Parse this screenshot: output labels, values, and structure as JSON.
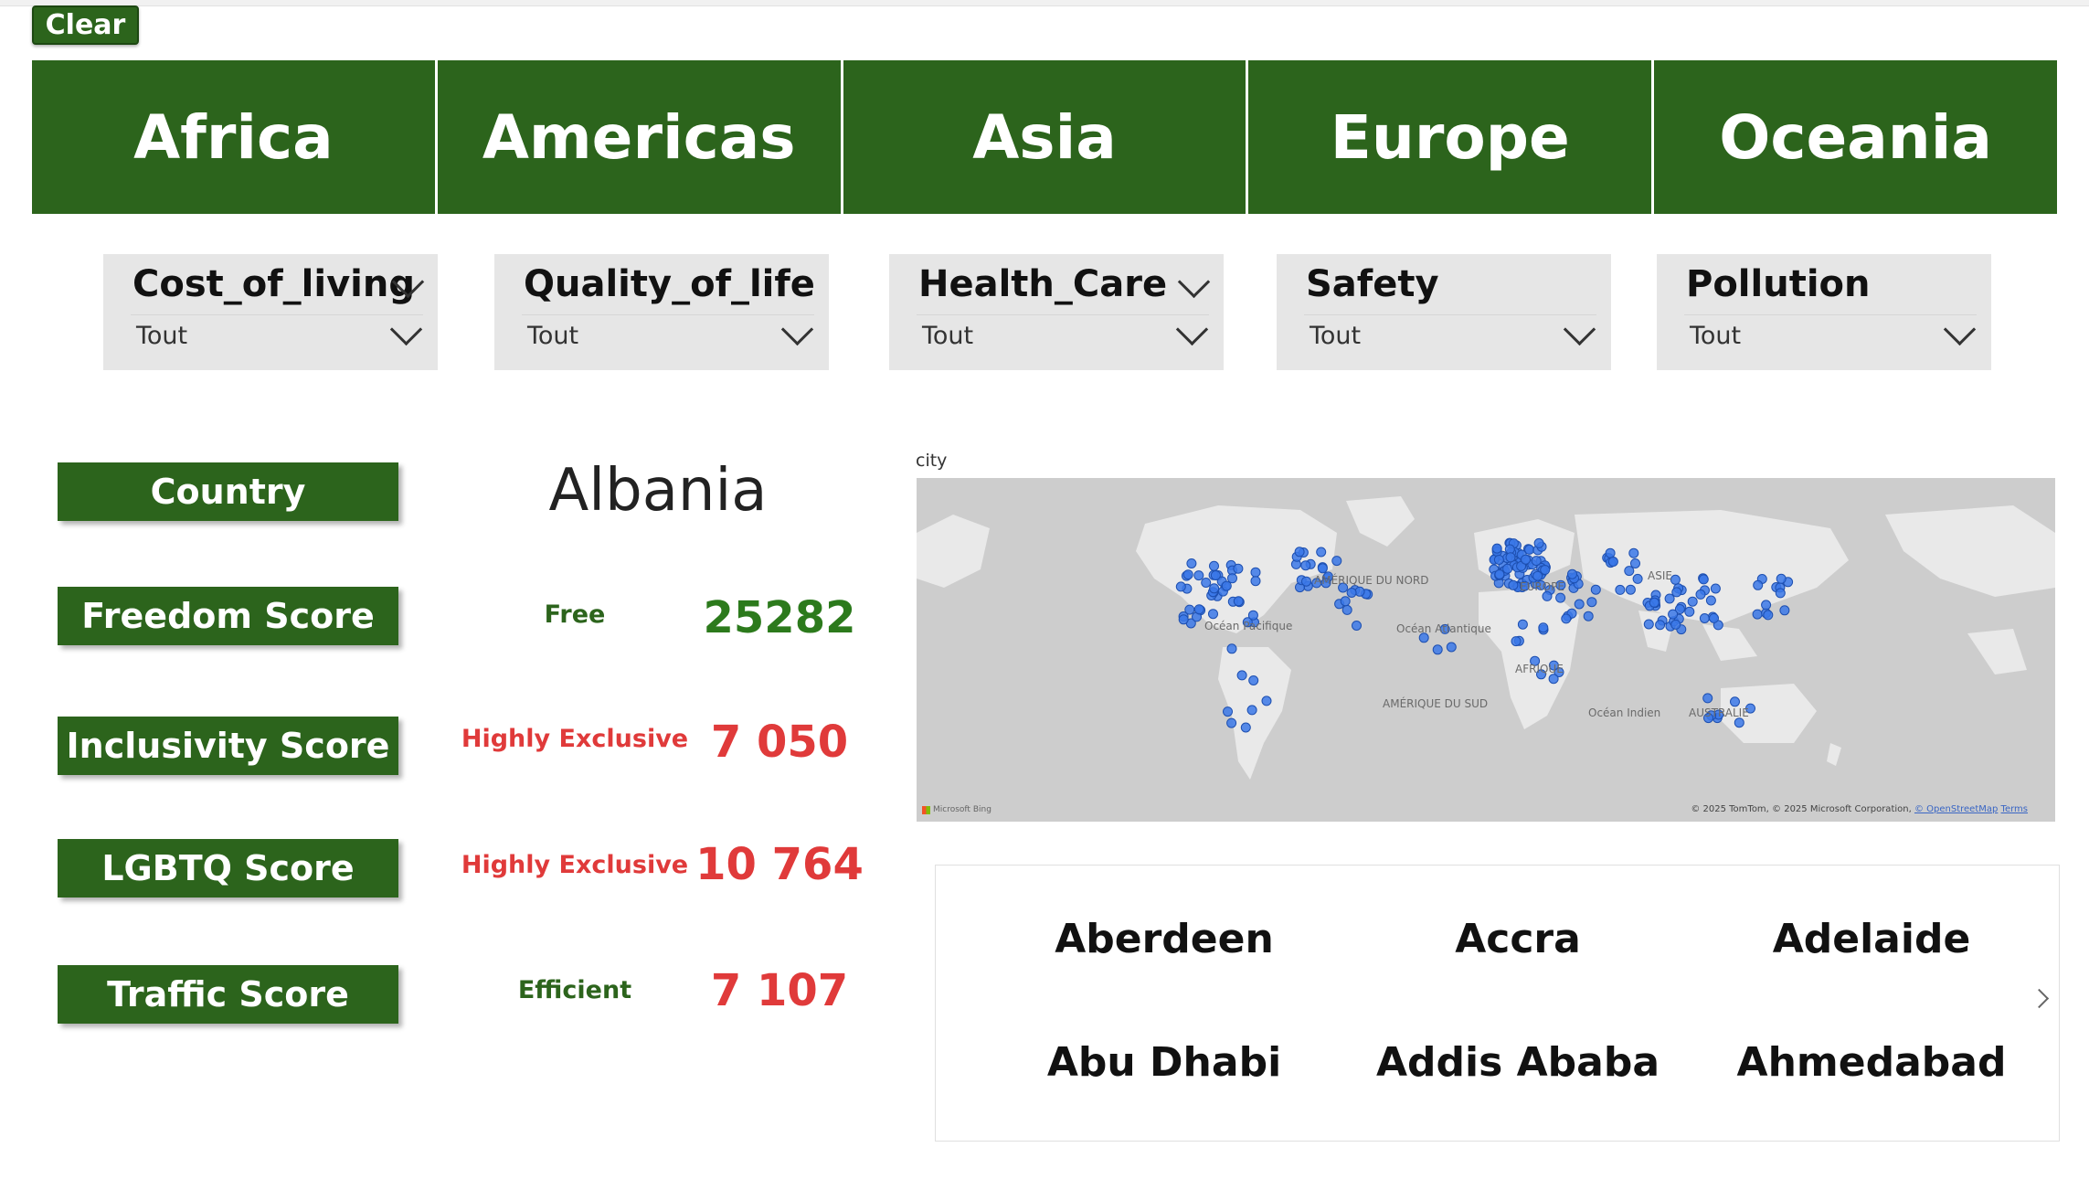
{
  "toolbar": {
    "clear_label": "Clear"
  },
  "regions": [
    "Africa",
    "Americas",
    "Asia",
    "Europe",
    "Oceania"
  ],
  "slicers": [
    {
      "title": "Cost_of_living",
      "value": "Tout"
    },
    {
      "title": "Quality_of_life",
      "value": "Tout"
    },
    {
      "title": "Health_Care",
      "value": "Tout"
    },
    {
      "title": "Safety",
      "value": "Tout"
    },
    {
      "title": "Pollution",
      "value": "Tout"
    }
  ],
  "labels": {
    "country": "Country",
    "freedom": "Freedom Score",
    "inclusivity": "Inclusivity Score",
    "lgbtq": "LGBTQ Score",
    "traffic": "Traffic Score"
  },
  "country_name": "Albania",
  "scores": {
    "freedom": {
      "status": "Free",
      "value": "25282",
      "color": "#2c7a1c"
    },
    "inclusivity": {
      "status": "Highly Exclusive",
      "value": "7 050",
      "color": "#e03a3a"
    },
    "lgbtq": {
      "status": "Highly Exclusive",
      "value": "10 764",
      "color": "#e03a3a"
    },
    "traffic": {
      "status": "Efficient",
      "value": "7 107",
      "color": "#e03a3a"
    }
  },
  "map": {
    "title": "city",
    "places": {
      "north_america": "AMÉRIQUE DU NORD",
      "pacific": "Océan Pacifique",
      "atlantic": "Océan Atlantique",
      "europe": "EUROPE",
      "asia": "ASIE",
      "africa": "AFRIQUE",
      "south_america": "AMÉRIQUE DU SUD",
      "indian": "Océan Indien",
      "australia": "AUSTRALIE"
    },
    "credit": "© 2025 TomTom, © 2025 Microsoft Corporation,",
    "credit_link_osm": "© OpenStreetMap",
    "credit_link_terms": "Terms",
    "brand": "Microsoft Bing",
    "point_color": "#3b78e7"
  },
  "cities": [
    "Aberdeen",
    "Accra",
    "Adelaide",
    "Abu Dhabi",
    "Addis Ababa",
    "Ahmedabad"
  ]
}
